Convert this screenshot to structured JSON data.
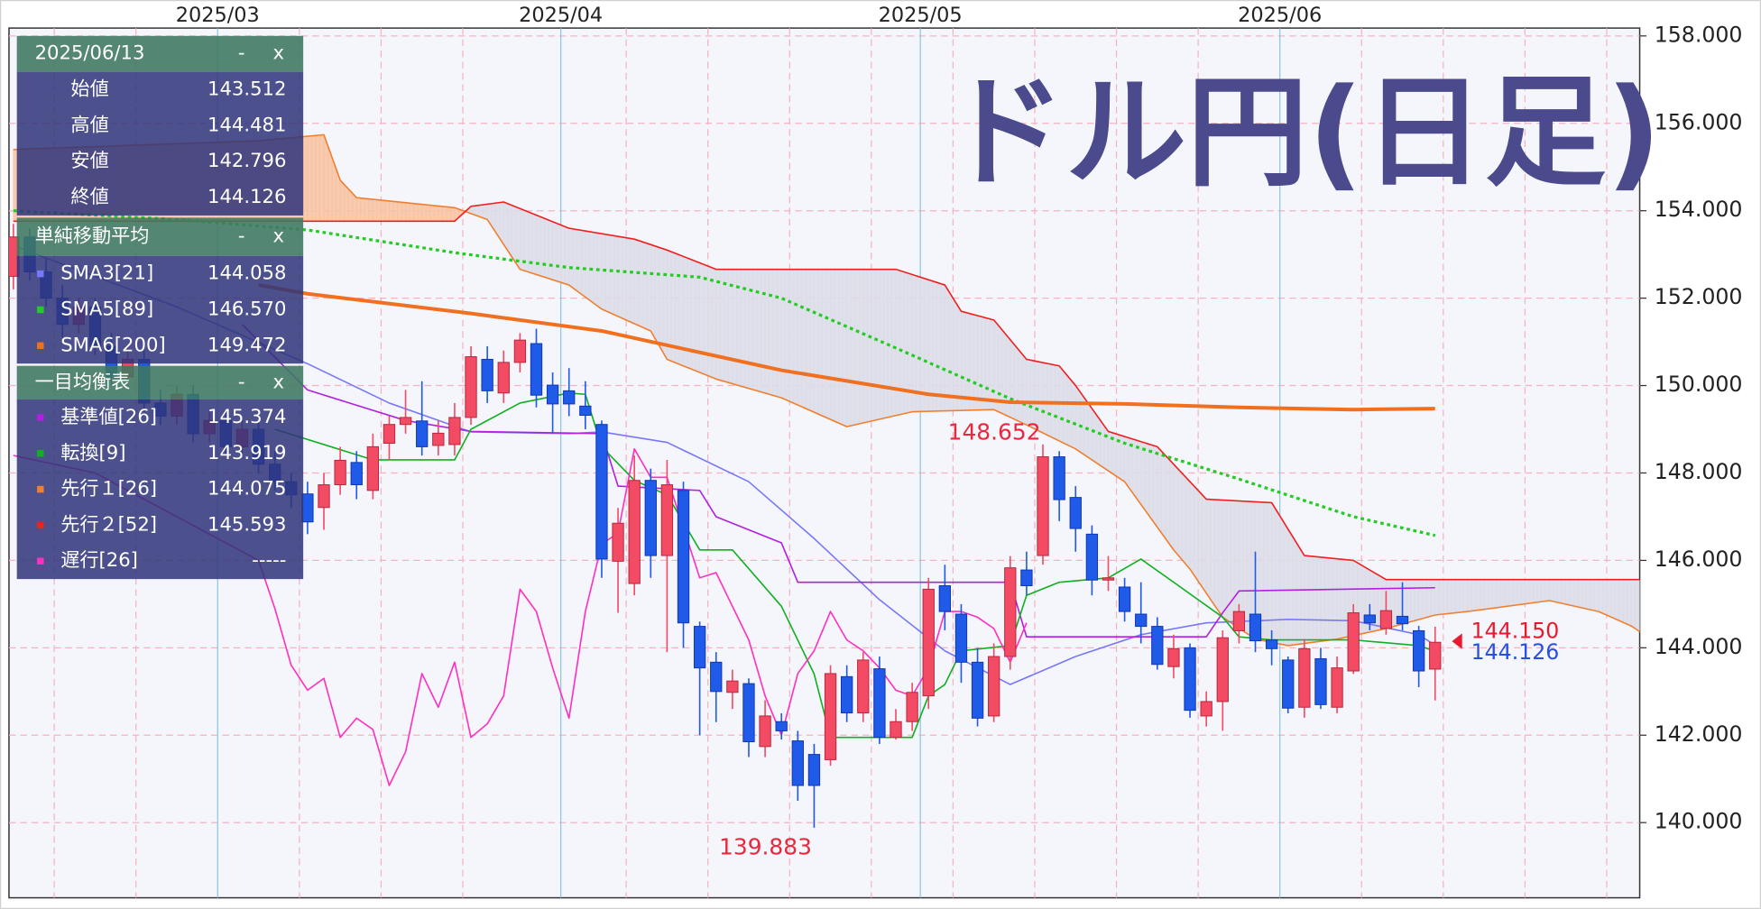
{
  "chart_data": {
    "type": "candlestick",
    "title": "ドル円(日足)",
    "categories": [
      null,
      null,
      null,
      null,
      null,
      null,
      null,
      null,
      null,
      null,
      null,
      null,
      null,
      null,
      null,
      null,
      null,
      null,
      null,
      null,
      null,
      null,
      null,
      null,
      null,
      null,
      null,
      null,
      null,
      null,
      null,
      null,
      null,
      null,
      null,
      null,
      null,
      null,
      null,
      null,
      null,
      null,
      null,
      null,
      null,
      null,
      null,
      null,
      null,
      null,
      null,
      null,
      null,
      null,
      null,
      null,
      null,
      null,
      null,
      null,
      null,
      null,
      null,
      null,
      null,
      null,
      null,
      null,
      null,
      null,
      null,
      null,
      null,
      null,
      null,
      null,
      null,
      null,
      null,
      null,
      null,
      null,
      null,
      null,
      null,
      null,
      null,
      null
    ],
    "open": [
      152.5,
      153.4,
      152.6,
      152.0,
      151.4,
      151.8,
      150.9,
      150.2,
      150.6,
      149.6,
      149.3,
      149.8,
      148.9,
      149.2,
      148.6,
      149.0,
      148.2,
      147.8,
      147.52,
      147.21,
      147.73,
      148.24,
      147.6,
      148.68,
      149.11,
      149.19,
      148.63,
      148.65,
      149.27,
      150.6,
      149.83,
      150.53,
      150.96,
      150.01,
      149.88,
      149.53,
      149.11,
      145.98,
      145.47,
      147.83,
      146.11,
      147.6,
      144.49,
      143.67,
      142.98,
      143.18,
      141.74,
      142.31,
      141.87,
      141.56,
      141.44,
      143.34,
      142.51,
      143.52,
      141.95,
      142.31,
      142.9,
      145.42,
      144.77,
      143.67,
      142.44,
      143.8,
      145.78,
      146.11,
      148.37,
      147.44,
      146.6,
      145.55,
      145.39,
      144.77,
      144.49,
      143.57,
      144.0,
      142.44,
      142.77,
      144.39,
      144.77,
      144.18,
      143.72,
      142.64,
      143.75,
      142.64,
      143.47,
      144.75,
      144.44,
      144.72,
      144.39,
      143.512
    ],
    "high": [
      153.7,
      153.6,
      152.9,
      152.3,
      152.0,
      152.0,
      151.2,
      150.9,
      150.8,
      149.9,
      150.0,
      150.0,
      149.4,
      149.4,
      149.2,
      149.2,
      148.5,
      148.0,
      147.8,
      148.0,
      148.6,
      148.5,
      148.9,
      149.3,
      149.9,
      150.1,
      149.2,
      149.6,
      150.9,
      150.9,
      150.8,
      151.2,
      151.3,
      150.3,
      150.4,
      150.1,
      149.2,
      147.2,
      148.4,
      148.1,
      148.3,
      147.8,
      144.6,
      143.9,
      143.5,
      143.3,
      142.8,
      142.5,
      142.1,
      141.8,
      143.6,
      143.6,
      143.9,
      143.8,
      142.6,
      143.2,
      145.6,
      145.9,
      145.0,
      144.0,
      144.1,
      146.1,
      146.2,
      148.652,
      148.5,
      147.7,
      146.8,
      146.1,
      145.6,
      145.5,
      144.7,
      144.3,
      144.1,
      143.0,
      144.4,
      145.0,
      146.2,
      144.4,
      143.8,
      144.2,
      144.0,
      143.8,
      145.0,
      145.0,
      145.3,
      145.5,
      144.5,
      144.481
    ],
    "low": [
      152.2,
      152.4,
      151.8,
      151.1,
      151.2,
      150.7,
      150.0,
      150.0,
      149.4,
      149.1,
      149.1,
      148.7,
      148.7,
      148.4,
      148.4,
      148.0,
      147.6,
      147.2,
      146.6,
      146.7,
      147.5,
      147.4,
      147.4,
      148.3,
      148.9,
      148.4,
      148.4,
      148.4,
      149.1,
      149.6,
      149.6,
      150.3,
      149.5,
      148.9,
      149.3,
      149.0,
      145.6,
      144.8,
      145.2,
      145.6,
      143.9,
      144.0,
      142.0,
      142.3,
      142.6,
      141.5,
      141.5,
      141.9,
      140.5,
      139.883,
      141.3,
      142.3,
      142.3,
      141.8,
      141.9,
      142.1,
      142.6,
      144.4,
      143.2,
      142.2,
      142.3,
      143.5,
      145.2,
      145.9,
      146.9,
      146.2,
      145.2,
      145.3,
      144.6,
      144.1,
      143.5,
      143.3,
      142.4,
      142.2,
      142.1,
      144.1,
      143.9,
      143.6,
      142.5,
      142.4,
      142.6,
      142.5,
      143.4,
      144.4,
      144.3,
      144.4,
      143.1,
      142.796
    ],
    "close": [
      153.4,
      152.6,
      152.0,
      151.4,
      151.8,
      150.9,
      150.2,
      150.6,
      149.6,
      149.3,
      149.8,
      148.9,
      149.2,
      148.6,
      149.0,
      148.2,
      147.8,
      147.5,
      146.88,
      147.73,
      148.29,
      147.73,
      148.6,
      149.11,
      149.27,
      148.6,
      148.91,
      149.27,
      150.66,
      149.88,
      150.53,
      151.04,
      149.78,
      149.58,
      149.58,
      149.32,
      146.03,
      146.85,
      147.83,
      146.11,
      147.73,
      144.57,
      143.54,
      143.0,
      143.24,
      141.85,
      142.44,
      142.1,
      140.85,
      140.85,
      143.41,
      142.51,
      143.72,
      141.95,
      142.31,
      142.98,
      145.34,
      144.83,
      143.67,
      142.39,
      143.8,
      145.83,
      145.42,
      148.37,
      147.39,
      146.73,
      145.55,
      145.6,
      144.83,
      144.49,
      143.62,
      143.98,
      142.57,
      142.77,
      144.23,
      144.83,
      144.16,
      143.98,
      142.62,
      143.98,
      142.7,
      143.54,
      144.8,
      144.57,
      144.85,
      144.55,
      143.47,
      144.126
    ],
    "up_color": "#f24b63",
    "down_color": "#1f5ae8",
    "xlim": [
      -0.27,
      99.52
    ],
    "ylim": [
      138.28,
      158.18
    ],
    "yticks": [
      {
        "value": 140,
        "label": "140.000"
      },
      {
        "value": 142,
        "label": "142.000"
      },
      {
        "value": 144,
        "label": "144.000"
      },
      {
        "value": 146,
        "label": "146.000"
      },
      {
        "value": 148,
        "label": "148.000"
      },
      {
        "value": 150,
        "label": "150.000"
      },
      {
        "value": 152,
        "label": "152.000"
      },
      {
        "value": 154,
        "label": "154.000"
      },
      {
        "value": 156,
        "label": "156.000"
      },
      {
        "value": 158,
        "label": "158.000"
      }
    ],
    "xticks": [
      {
        "value": 12.5,
        "label": "2025/03"
      },
      {
        "value": 33.5,
        "label": "2025/04"
      },
      {
        "value": 55.5,
        "label": "2025/05"
      },
      {
        "value": 77.5,
        "label": "2025/06"
      }
    ],
    "xgrid": [
      2.5,
      7.5,
      17.5,
      22.5,
      27.5,
      37.5,
      42.5,
      47.5,
      52.5,
      57.5,
      62.5,
      67.5,
      72.5,
      82.5,
      87.5,
      92.5,
      97.5
    ],
    "grid": true,
    "lines": [
      {
        "name": "SMA3[21]",
        "current": "144.058",
        "color": "#7878f8",
        "style": "solid",
        "x": [
          0,
          10,
          18,
          23,
          28,
          34,
          36,
          40,
          45,
          49,
          53,
          57,
          61,
          65,
          69,
          73,
          78,
          82,
          86,
          87
        ],
        "values": [
          153.2,
          151.8,
          150.5,
          149.6,
          148.94,
          148.9,
          148.94,
          148.7,
          147.8,
          146.5,
          145.1,
          143.93,
          143.16,
          143.8,
          144.3,
          144.57,
          144.65,
          144.62,
          144.3,
          144.058
        ]
      },
      {
        "name": "SMA5[89]",
        "current": "146.570",
        "color": "#22cc22",
        "style": "dotted",
        "x": [
          0,
          10,
          18,
          27,
          34,
          42,
          47,
          54,
          61,
          68,
          75,
          82,
          87
        ],
        "values": [
          154.0,
          153.8,
          153.56,
          153.04,
          152.7,
          152.48,
          152.0,
          150.86,
          149.7,
          148.68,
          147.86,
          147.0,
          146.57
        ]
      },
      {
        "name": "SMA6[200]",
        "current": "149.472",
        "color": "#f07020",
        "style": "thick",
        "x": [
          15,
          18,
          28,
          36,
          47,
          56,
          61,
          68,
          75,
          82,
          87
        ],
        "values": [
          152.3,
          152.1,
          151.65,
          151.25,
          150.35,
          149.8,
          149.62,
          149.58,
          149.5,
          149.45,
          149.472
        ]
      },
      {
        "name": "基準値[26]",
        "current": "145.374",
        "color": "#b020e0",
        "style": "solid",
        "x": [
          14,
          18,
          24,
          28,
          36,
          37,
          42,
          43,
          47,
          48,
          61,
          62,
          73,
          74,
          75,
          87
        ],
        "values": [
          151.4,
          149.9,
          149.2,
          148.95,
          148.9,
          147.7,
          147.6,
          147.0,
          146.4,
          145.5,
          145.5,
          144.25,
          144.25,
          144.8,
          145.3,
          145.374
        ]
      },
      {
        "name": "転換[9]",
        "current": "143.919",
        "color": "#10b020",
        "style": "solid",
        "x": [
          16,
          22,
          27,
          28,
          31,
          34,
          35,
          36,
          38,
          40,
          42,
          44,
          47,
          49,
          50,
          55,
          56,
          57,
          58,
          61,
          62,
          64,
          67,
          69,
          71,
          74,
          75,
          77,
          82,
          86,
          87
        ],
        "values": [
          149.0,
          148.3,
          148.3,
          149.0,
          149.6,
          149.83,
          149.8,
          148.6,
          147.83,
          147.5,
          146.24,
          146.24,
          144.95,
          143.4,
          141.95,
          141.95,
          142.9,
          143.16,
          143.93,
          144.05,
          145.2,
          145.5,
          145.6,
          146.03,
          145.5,
          144.7,
          144.25,
          144.18,
          144.18,
          144.05,
          143.919
        ]
      },
      {
        "name": "遅行[26]",
        "current": "-----",
        "color": "#ff30c0",
        "style": "solid",
        "x": [
          0,
          5,
          10,
          15,
          16,
          17,
          18,
          19,
          20,
          21,
          22,
          23,
          24,
          25,
          26,
          27,
          28,
          29,
          30,
          31,
          32,
          33,
          34,
          35,
          36,
          37,
          38,
          39,
          40,
          41,
          42,
          43,
          44,
          45,
          46,
          47,
          48,
          49,
          50,
          51,
          52,
          53,
          54,
          55,
          56,
          57,
          58,
          59,
          60,
          61,
          62
        ],
        "values": [
          148.4,
          148.0,
          147.0,
          146.0,
          144.9,
          143.6,
          143.03,
          143.3,
          141.95,
          142.39,
          142.13,
          140.85,
          141.62,
          143.41,
          142.64,
          143.67,
          141.95,
          142.26,
          142.9,
          145.34,
          144.83,
          143.54,
          142.39,
          144.83,
          146.37,
          146.63,
          148.55,
          147.9,
          147.9,
          146.75,
          145.6,
          145.72,
          144.95,
          144.18,
          142.9,
          142.0,
          143.41,
          143.93,
          144.83,
          144.18,
          143.93,
          143.54,
          143.03,
          142.9,
          143.54,
          144.83,
          144.83,
          144.7,
          144.44,
          143.67,
          144.57
        ]
      }
    ],
    "cloud": {
      "a_above_color": "#f8c2a0",
      "b_above_color": "#dcdce8",
      "span_a": {
        "name": "先行１[26]",
        "current": "144.075",
        "color": "#f08030",
        "x": [
          0,
          15,
          19,
          20,
          21,
          27,
          29,
          31,
          34,
          36,
          39,
          40,
          43,
          47,
          51,
          55,
          60,
          62,
          65,
          68,
          71,
          72,
          74,
          76,
          78,
          81,
          84,
          87,
          89,
          94,
          97,
          99,
          100
        ],
        "values": [
          155.4,
          155.6,
          155.74,
          154.7,
          154.3,
          154.07,
          153.8,
          152.66,
          152.3,
          151.75,
          151.25,
          150.6,
          150.15,
          149.72,
          149.06,
          149.4,
          149.45,
          149.1,
          148.55,
          147.8,
          146.24,
          145.8,
          144.7,
          144.2,
          144.05,
          144.2,
          144.44,
          144.75,
          144.83,
          145.08,
          144.83,
          144.5,
          144.25
        ]
      },
      "span_b": {
        "name": "先行２[52]",
        "current": "145.593",
        "color": "#f02020",
        "x": [
          0,
          27,
          28,
          30,
          34,
          38,
          40,
          43,
          54,
          57,
          58,
          60,
          62,
          64,
          65,
          67,
          70,
          73,
          77,
          79,
          82,
          84,
          100
        ],
        "values": [
          153.76,
          153.76,
          154.1,
          154.2,
          153.6,
          153.35,
          153.1,
          152.66,
          152.66,
          152.3,
          151.7,
          151.5,
          150.6,
          150.45,
          150.0,
          148.95,
          148.6,
          147.4,
          147.32,
          146.11,
          146.0,
          145.56,
          145.56
        ]
      }
    },
    "annotations": [
      {
        "x": 63,
        "value": 148.652,
        "position": "above"
      },
      {
        "x": 49,
        "value": 139.883,
        "position": "below"
      }
    ],
    "price_labels": [
      {
        "value": 144.15,
        "label": "144.150",
        "color": "#e8192c"
      },
      {
        "value": 144.126,
        "label": "144.126",
        "color": "#2850e0"
      }
    ]
  },
  "info_panel": {
    "date": "2025/06/13",
    "minimize": "-",
    "close": "x",
    "ohlc": [
      {
        "label": "始値",
        "value": "143.512"
      },
      {
        "label": "高値",
        "value": "144.481"
      },
      {
        "label": "安値",
        "value": "142.796"
      },
      {
        "label": "終値",
        "value": "144.126"
      }
    ],
    "sma_title": "単純移動平均",
    "ichimoku_title": "一目均衡表"
  }
}
